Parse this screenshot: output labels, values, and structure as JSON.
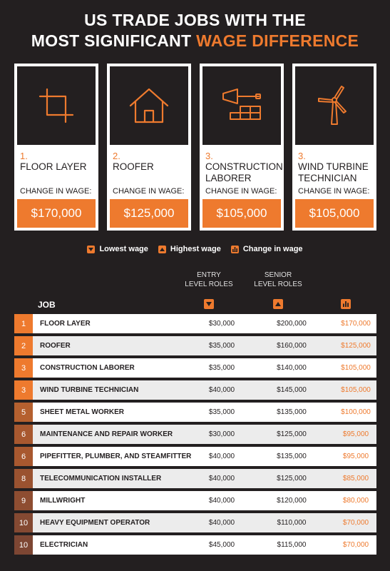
{
  "title": {
    "line1": "US TRADE JOBS WITH THE",
    "line2_prefix": "MOST SIGNIFICANT ",
    "line2_accent": "WAGE DIFFERENCE"
  },
  "colors": {
    "background": "#231f20",
    "accent": "#ee7a2e",
    "rank_top": "#ee7a2e",
    "rank_mid": "#c8682a",
    "rank_low": "#9a5633",
    "row_white": "#ffffff",
    "row_gray": "#ececec"
  },
  "cards": [
    {
      "rank": "1.",
      "name": "FLOOR LAYER",
      "change_label": "CHANGE IN WAGE:",
      "amount": "$170,000",
      "icon": "crop-icon"
    },
    {
      "rank": "2.",
      "name": "ROOFER",
      "change_label": "CHANGE IN WAGE:",
      "amount": "$125,000",
      "icon": "house-icon"
    },
    {
      "rank": "3.",
      "name": "CONSTRUCTION LABORER",
      "change_label": "CHANGE IN WAGE:",
      "amount": "$105,000",
      "icon": "trowel-bricks-icon"
    },
    {
      "rank": "3.",
      "name": "WIND TURBINE TECHNICIAN",
      "change_label": "CHANGE IN WAGE:",
      "amount": "$105,000",
      "icon": "wind-turbine-icon"
    }
  ],
  "legend": {
    "lowest": "Lowest wage",
    "highest": "Highest wage",
    "change": "Change in wage"
  },
  "table": {
    "job_header": "JOB",
    "entry_header": "ENTRY LEVEL ROLES",
    "senior_header": "SENIOR LEVEL ROLES",
    "rows": [
      {
        "rank": "1",
        "job": "FLOOR LAYER",
        "entry": "$30,000",
        "senior": "$200,000",
        "change": "$170,000"
      },
      {
        "rank": "2",
        "job": "ROOFER",
        "entry": "$35,000",
        "senior": "$160,000",
        "change": "$125,000"
      },
      {
        "rank": "3",
        "job": "CONSTRUCTION LABORER",
        "entry": "$35,000",
        "senior": "$140,000",
        "change": "$105,000"
      },
      {
        "rank": "3",
        "job": "WIND TURBINE TECHNICIAN",
        "entry": "$40,000",
        "senior": "$145,000",
        "change": "$105,000"
      },
      {
        "rank": "5",
        "job": "SHEET METAL WORKER",
        "entry": "$35,000",
        "senior": "$135,000",
        "change": "$100,000"
      },
      {
        "rank": "6",
        "job": "MAINTENANCE AND REPAIR WORKER",
        "entry": "$30,000",
        "senior": "$125,000",
        "change": "$95,000"
      },
      {
        "rank": "6",
        "job": "PIPEFITTER, PLUMBER, AND STEAMFITTER",
        "entry": "$40,000",
        "senior": "$135,000",
        "change": "$95,000"
      },
      {
        "rank": "8",
        "job": "TELECOMMUNICATION INSTALLER",
        "entry": "$40,000",
        "senior": "$125,000",
        "change": "$85,000"
      },
      {
        "rank": "9",
        "job": "MILLWRIGHT",
        "entry": "$40,000",
        "senior": "$120,000",
        "change": "$80,000"
      },
      {
        "rank": "10",
        "job": "HEAVY EQUIPMENT OPERATOR",
        "entry": "$40,000",
        "senior": "$110,000",
        "change": "$70,000"
      },
      {
        "rank": "10",
        "job": "ELECTRICIAN",
        "entry": "$45,000",
        "senior": "$115,000",
        "change": "$70,000"
      }
    ]
  }
}
